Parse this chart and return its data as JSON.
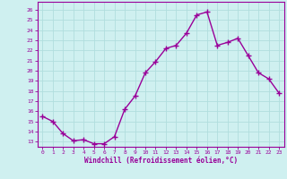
{
  "x": [
    0,
    1,
    2,
    3,
    4,
    5,
    6,
    7,
    8,
    9,
    10,
    11,
    12,
    13,
    14,
    15,
    16,
    17,
    18,
    19,
    20,
    21,
    22,
    23
  ],
  "y": [
    15.5,
    15.0,
    13.8,
    13.1,
    13.2,
    12.8,
    12.8,
    13.5,
    16.2,
    17.5,
    19.8,
    20.9,
    22.2,
    22.5,
    23.7,
    25.5,
    25.8,
    22.5,
    22.8,
    23.2,
    21.5,
    19.8,
    19.2,
    17.8
  ],
  "line_color": "#990099",
  "marker": "+",
  "marker_size": 4,
  "linewidth": 1.0,
  "bg_color": "#cff0f0",
  "grid_color": "#b0dede",
  "xlabel": "Windchill (Refroidissement éolien,°C)",
  "xlabel_color": "#990099",
  "ylabel_ticks": [
    13,
    14,
    15,
    16,
    17,
    18,
    19,
    20,
    21,
    22,
    23,
    24,
    25,
    26
  ],
  "ylim": [
    12.5,
    26.8
  ],
  "xlim": [
    -0.5,
    23.5
  ],
  "xtick_labels": [
    "0",
    "1",
    "2",
    "3",
    "4",
    "5",
    "6",
    "7",
    "8",
    "9",
    "10",
    "11",
    "12",
    "13",
    "14",
    "15",
    "16",
    "17",
    "18",
    "19",
    "20",
    "21",
    "22",
    "23"
  ],
  "tick_color": "#990099",
  "spine_color": "#990099"
}
